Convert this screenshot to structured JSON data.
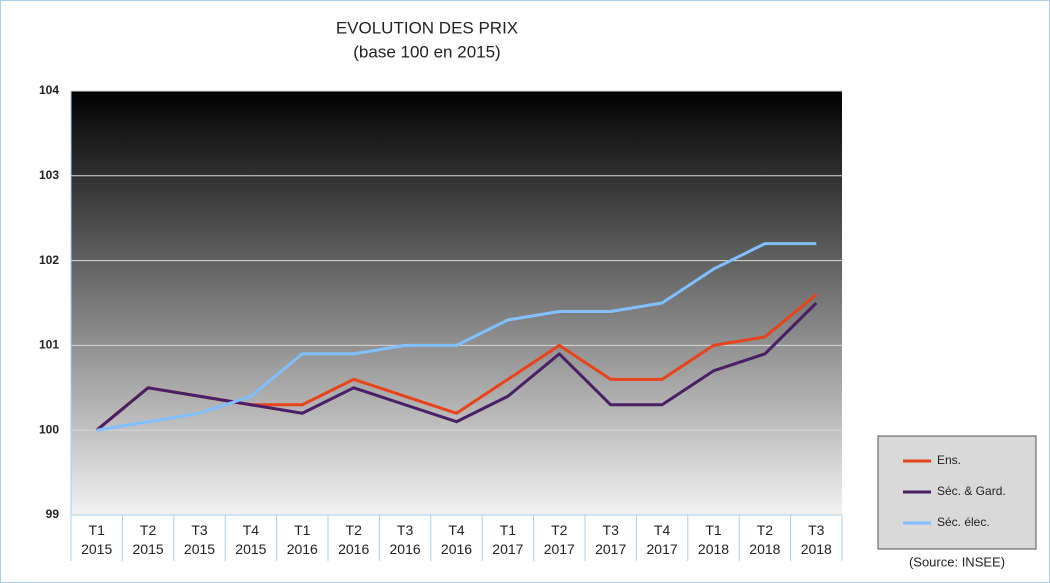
{
  "chart_data": {
    "type": "line",
    "title": "EVOLUTION DES PRIX",
    "subtitle": "(base 100 en 2015)",
    "categories": [
      "T1 2015",
      "T2 2015",
      "T3 2015",
      "T4 2015",
      "T1 2016",
      "T2 2016",
      "T3 2016",
      "T4 2016",
      "T1 2017",
      "T2 2017",
      "T3 2017",
      "T4 2017",
      "T1 2018",
      "T2 2018",
      "T3 2018"
    ],
    "series": [
      {
        "name": "Ens.",
        "color": "#e8431a",
        "values": [
          100,
          100.5,
          100.4,
          100.3,
          100.3,
          100.6,
          100.4,
          100.2,
          100.6,
          101.0,
          100.6,
          100.6,
          101.0,
          101.1,
          101.6
        ]
      },
      {
        "name": "Séc. & Gard.",
        "color": "#4b1f66",
        "values": [
          100,
          100.5,
          100.4,
          100.3,
          100.2,
          100.5,
          100.3,
          100.1,
          100.4,
          100.9,
          100.3,
          100.3,
          100.7,
          100.9,
          101.5
        ]
      },
      {
        "name": "Séc. élec.",
        "color": "#80c0ff",
        "values": [
          100,
          100.1,
          100.2,
          100.4,
          100.9,
          100.9,
          101.0,
          101.0,
          101.3,
          101.4,
          101.4,
          101.5,
          101.9,
          102.2,
          102.2
        ]
      }
    ],
    "ylim": [
      99,
      104
    ],
    "yticks": [
      99,
      100,
      101,
      102,
      103,
      104
    ],
    "grid": true,
    "source": "(Source: INSEE)"
  }
}
